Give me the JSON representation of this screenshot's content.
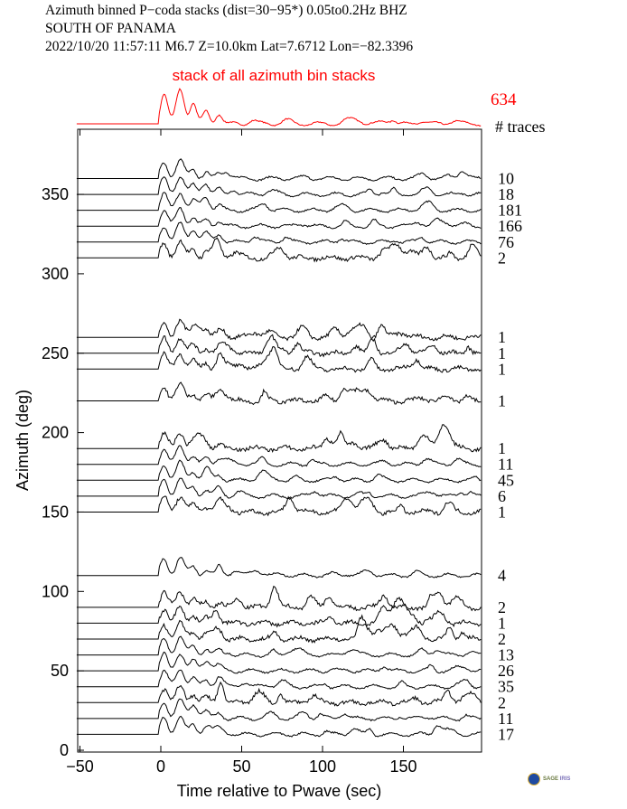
{
  "header": {
    "line1": "Azimuth binned P−coda stacks (dist=30−95*)  0.05to0.2Hz  BHZ",
    "line2": "SOUTH OF PANAMA",
    "line3": "2022/10/20  11:57:11  M6.7  Z=10.0km Lat=7.6712 Lon=−82.3396"
  },
  "logo": {
    "text1": "SAGE",
    "text2": "IRIS"
  },
  "chart_data": {
    "type": "line",
    "title": "Azimuth binned P-coda stacks",
    "xlabel": "Time relative to Pwave (sec)",
    "ylabel": "Azimuth (deg)",
    "xlim": [
      -52,
      198
    ],
    "ylim": [
      0,
      375
    ],
    "xticks": [
      -50,
      0,
      50,
      100,
      150
    ],
    "xtick_labels": [
      "−50",
      "0",
      "50",
      "100",
      "150"
    ],
    "yticks": [
      0,
      50,
      100,
      150,
      200,
      250,
      300,
      350
    ],
    "ytick_labels": [
      "0",
      "50",
      "100",
      "150",
      "200",
      "250",
      "300",
      "350"
    ],
    "stack": {
      "label": "stack of all azimuth bin stacks",
      "count": "634",
      "color": "#ff0000"
    },
    "count_header": "# traces",
    "traces": [
      {
        "azimuth": 360,
        "count": "10"
      },
      {
        "azimuth": 350,
        "count": "18"
      },
      {
        "azimuth": 340,
        "count": "181"
      },
      {
        "azimuth": 330,
        "count": "166"
      },
      {
        "azimuth": 320,
        "count": "76"
      },
      {
        "azimuth": 310,
        "count": "2"
      },
      {
        "azimuth": 260,
        "count": "1"
      },
      {
        "azimuth": 250,
        "count": "1"
      },
      {
        "azimuth": 240,
        "count": "1"
      },
      {
        "azimuth": 220,
        "count": "1"
      },
      {
        "azimuth": 190,
        "count": "1"
      },
      {
        "azimuth": 180,
        "count": "11"
      },
      {
        "azimuth": 170,
        "count": "45"
      },
      {
        "azimuth": 160,
        "count": "6"
      },
      {
        "azimuth": 150,
        "count": "1"
      },
      {
        "azimuth": 110,
        "count": "4"
      },
      {
        "azimuth": 90,
        "count": "2"
      },
      {
        "azimuth": 80,
        "count": "1"
      },
      {
        "azimuth": 70,
        "count": "2"
      },
      {
        "azimuth": 60,
        "count": "13"
      },
      {
        "azimuth": 50,
        "count": "26"
      },
      {
        "azimuth": 40,
        "count": "35"
      },
      {
        "azimuth": 30,
        "count": "2"
      },
      {
        "azimuth": 20,
        "count": "11"
      },
      {
        "azimuth": 10,
        "count": "17"
      }
    ]
  }
}
